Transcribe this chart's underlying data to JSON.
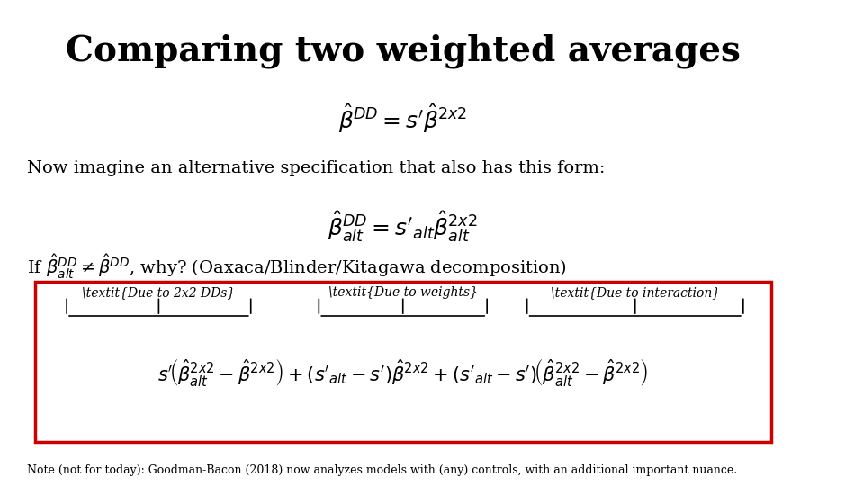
{
  "title": "Comparing two weighted averages",
  "title_fontsize": 28,
  "background_color": "#ffffff",
  "eq1": "$\\hat{\\beta}^{DD} = s'\\hat{\\beta}^{2x2}$",
  "text1": "Now imagine an alternative specification that also has this form:",
  "eq2": "$\\hat{\\beta}^{DD}_{alt} = s'_{alt}\\hat{\\beta}^{2x2}_{alt}$",
  "text2": "If $\\hat{\\beta}^{DD}_{alt} \\neq \\hat{\\beta}^{DD}$, why? (Oaxaca/Blinder/Kitagawa decomposition)",
  "box_label1": "Due to 2x2 DDs",
  "box_label2": "Due to weights",
  "box_label3": "Due to interaction",
  "box_eq": "$s'\\left(\\hat{\\beta}^{2x2}_{alt} - \\hat{\\beta}^{2x2}\\right) + \\left(s'_{alt} - s'\\right)\\hat{\\beta}^{2x2} + \\left(s'_{alt} - s'\\right)\\left(\\hat{\\beta}^{2x2}_{alt} - \\hat{\\beta}^{2x2}\\right)$",
  "note": "Note (not for today): Goodman-Bacon (2018) now analyzes models with (any) controls, with an additional important nuance.",
  "box_color": "#cc0000",
  "text_color": "#000000"
}
